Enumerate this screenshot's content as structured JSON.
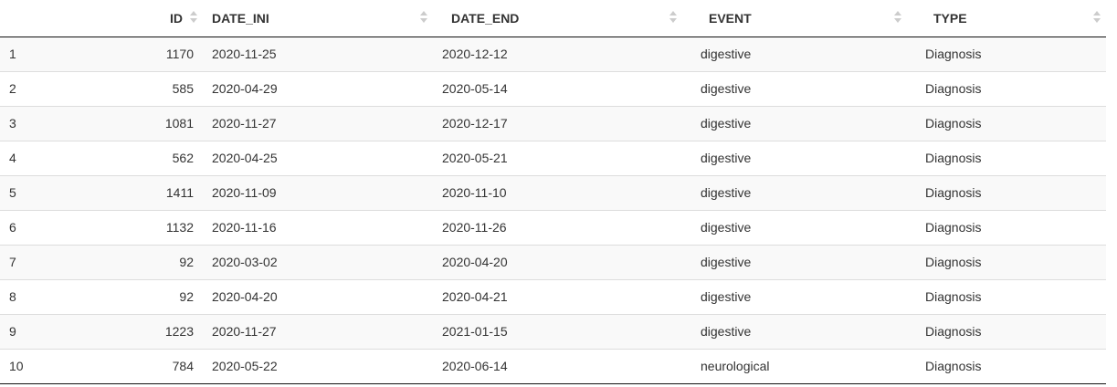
{
  "table": {
    "columns": [
      {
        "label": ""
      },
      {
        "label": "ID"
      },
      {
        "label": "DATE_INI"
      },
      {
        "label": "DATE_END"
      },
      {
        "label": "EVENT"
      },
      {
        "label": "TYPE"
      }
    ],
    "rows": [
      {
        "idx": "1",
        "id": "1170",
        "date_ini": "2020-11-25",
        "date_end": "2020-12-12",
        "event": "digestive",
        "type": "Diagnosis"
      },
      {
        "idx": "2",
        "id": "585",
        "date_ini": "2020-04-29",
        "date_end": "2020-05-14",
        "event": "digestive",
        "type": "Diagnosis"
      },
      {
        "idx": "3",
        "id": "1081",
        "date_ini": "2020-11-27",
        "date_end": "2020-12-17",
        "event": "digestive",
        "type": "Diagnosis"
      },
      {
        "idx": "4",
        "id": "562",
        "date_ini": "2020-04-25",
        "date_end": "2020-05-21",
        "event": "digestive",
        "type": "Diagnosis"
      },
      {
        "idx": "5",
        "id": "1411",
        "date_ini": "2020-11-09",
        "date_end": "2020-11-10",
        "event": "digestive",
        "type": "Diagnosis"
      },
      {
        "idx": "6",
        "id": "1132",
        "date_ini": "2020-11-16",
        "date_end": "2020-11-26",
        "event": "digestive",
        "type": "Diagnosis"
      },
      {
        "idx": "7",
        "id": "92",
        "date_ini": "2020-03-02",
        "date_end": "2020-04-20",
        "event": "digestive",
        "type": "Diagnosis"
      },
      {
        "idx": "8",
        "id": "92",
        "date_ini": "2020-04-20",
        "date_end": "2020-04-21",
        "event": "digestive",
        "type": "Diagnosis"
      },
      {
        "idx": "9",
        "id": "1223",
        "date_ini": "2020-11-27",
        "date_end": "2021-01-15",
        "event": "digestive",
        "type": "Diagnosis"
      },
      {
        "idx": "10",
        "id": "784",
        "date_ini": "2020-05-22",
        "date_end": "2020-06-14",
        "event": "neurological",
        "type": "Diagnosis"
      }
    ]
  }
}
